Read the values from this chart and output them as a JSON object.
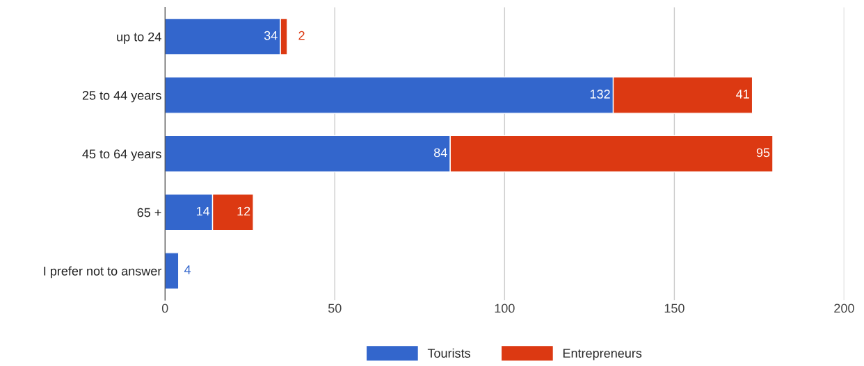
{
  "chart_data": {
    "type": "bar",
    "orientation": "horizontal",
    "stacked": true,
    "categories": [
      "up to 24",
      "25 to 44 years",
      "45 to 64 years",
      "65 +",
      "I prefer not to answer"
    ],
    "series": [
      {
        "name": "Tourists",
        "color": "#3366cc",
        "values": [
          34,
          132,
          84,
          14,
          4
        ]
      },
      {
        "name": "Entrepreneurs",
        "color": "#dc3912",
        "values": [
          2,
          41,
          95,
          12,
          null
        ]
      }
    ],
    "xlim": [
      0,
      200
    ],
    "xticks": [
      0,
      50,
      100,
      150,
      200
    ],
    "grid": "x",
    "legend": "bottom",
    "data_labels": true
  }
}
